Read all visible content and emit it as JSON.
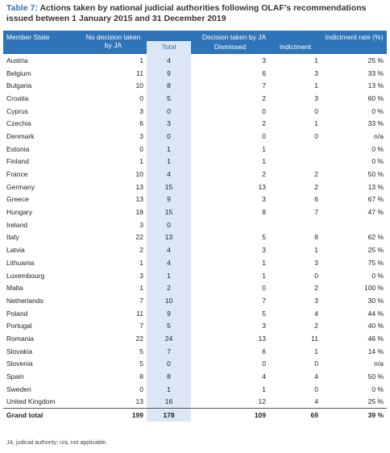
{
  "title": {
    "label": "Table 7:",
    "text": "Actions taken by national judicial authorities following OLAF’s recommendations issued between 1 January 2015 and 31 December 2019"
  },
  "table": {
    "header": {
      "member_state": "Member State",
      "no_decision": "No decision taken by JA",
      "decision": "Decision taken by JA",
      "rate": "Indictment rate (%)",
      "sub": [
        "Total",
        "Dismissed",
        "Indictment"
      ]
    },
    "rows": [
      [
        "Austria",
        "1",
        "4",
        "3",
        "1",
        "25 %"
      ],
      [
        "Belgium",
        "11",
        "9",
        "6",
        "3",
        "33 %"
      ],
      [
        "Bulgaria",
        "10",
        "8",
        "7",
        "1",
        "13 %"
      ],
      [
        "Croatia",
        "0",
        "5",
        "2",
        "3",
        "60 %"
      ],
      [
        "Cyprus",
        "3",
        "0",
        "0",
        "0",
        "0 %"
      ],
      [
        "Czechia",
        "6",
        "3",
        "2",
        "1",
        "33 %"
      ],
      [
        "Denmark",
        "3",
        "0",
        "0",
        "0",
        "n/a"
      ],
      [
        "Estonia",
        "0",
        "1",
        "1",
        null,
        "0 %"
      ],
      [
        "Finland",
        "1",
        "1",
        "1",
        null,
        "0 %"
      ],
      [
        "France",
        "10",
        "4",
        "2",
        "2",
        "50 %"
      ],
      [
        "Germany",
        "13",
        "15",
        "13",
        "2",
        "13 %"
      ],
      [
        "Greece",
        "13",
        "9",
        "3",
        "6",
        "67 %"
      ],
      [
        "Hungary",
        "18",
        "15",
        "8",
        "7",
        "47 %"
      ],
      [
        "Ireland",
        "3",
        "0",
        null,
        null,
        null
      ],
      [
        "Italy",
        "22",
        "13",
        "5",
        "8",
        "62 %"
      ],
      [
        "Latvia",
        "2",
        "4",
        "3",
        "1",
        "25 %"
      ],
      [
        "Lithuania",
        "1",
        "4",
        "1",
        "3",
        "75 %"
      ],
      [
        "Luxembourg",
        "3",
        "1",
        "1",
        "0",
        "0 %"
      ],
      [
        "Malta",
        "1",
        "2",
        "0",
        "2",
        "100 %"
      ],
      [
        "Netherlands",
        "7",
        "10",
        "7",
        "3",
        "30 %"
      ],
      [
        "Poland",
        "11",
        "9",
        "5",
        "4",
        "44 %"
      ],
      [
        "Portugal",
        "7",
        "5",
        "3",
        "2",
        "40 %"
      ],
      [
        "Romania",
        "22",
        "24",
        "13",
        "11",
        "46 %"
      ],
      [
        "Slovakia",
        "5",
        "7",
        "6",
        "1",
        "14 %"
      ],
      [
        "Slovenia",
        "5",
        "0",
        "0",
        "0",
        "n/a"
      ],
      [
        "Spain",
        "8",
        "8",
        "4",
        "4",
        "50 %"
      ],
      [
        "Sweden",
        "0",
        "1",
        "1",
        "0",
        "0 %"
      ],
      [
        "United Kingdom",
        "13",
        "16",
        "12",
        "4",
        "25 %"
      ],
      [
        "Grand total",
        "199",
        "178",
        "109",
        "69",
        "39 %"
      ]
    ]
  },
  "footnote": "JA, judicial authority; n/a, not applicable."
}
